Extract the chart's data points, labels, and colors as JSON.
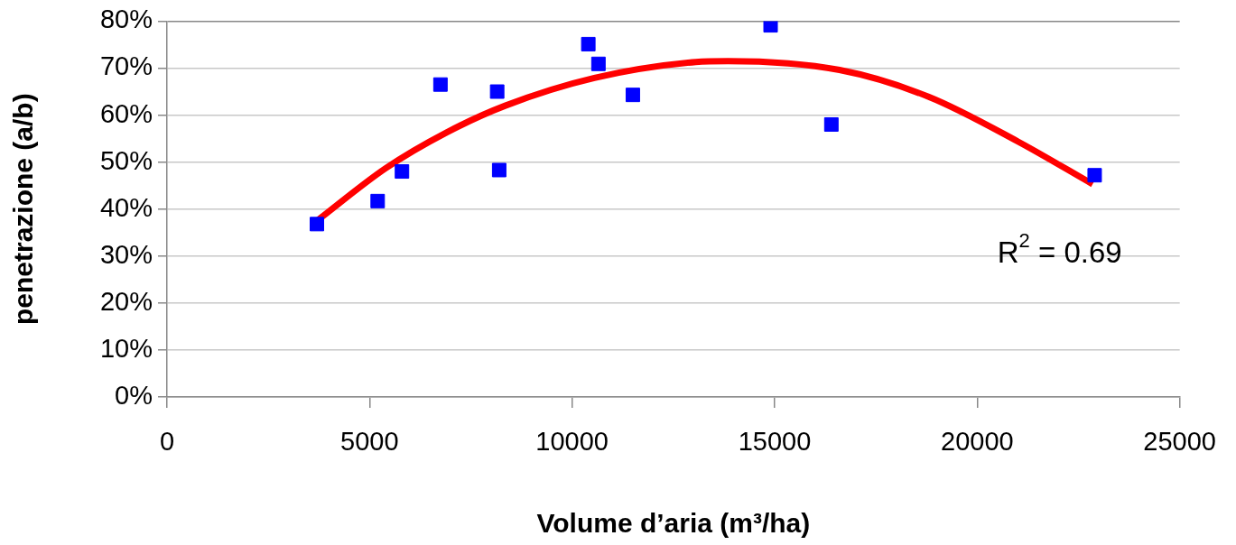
{
  "chart_data": {
    "type": "scatter",
    "xlabel": "Volume d’aria (m³/ha)",
    "ylabel": "penetrazione (a/b)",
    "xlim": [
      0,
      25000
    ],
    "xticks": [
      0,
      5000,
      10000,
      15000,
      20000,
      25000
    ],
    "ylim": [
      0,
      80
    ],
    "yticks": [
      {
        "value": 0,
        "label": "0%"
      },
      {
        "value": 10,
        "label": "10%"
      },
      {
        "value": 20,
        "label": "20%"
      },
      {
        "value": 30,
        "label": "30%"
      },
      {
        "value": 40,
        "label": "40%"
      },
      {
        "value": 50,
        "label": "50%"
      },
      {
        "value": 60,
        "label": "60%"
      },
      {
        "value": 70,
        "label": "70%"
      },
      {
        "value": 80,
        "label": "80%"
      }
    ],
    "grid": "y",
    "legend": false,
    "marker": "square",
    "series": [
      {
        "color": "#0000ff",
        "x": [
          3700,
          5200,
          5800,
          6750,
          8150,
          8200,
          10400,
          10650,
          11500,
          14900,
          16400,
          22900
        ],
        "values": [
          36.8,
          41.7,
          48,
          66.5,
          65,
          48.3,
          75.1,
          70.9,
          64.3,
          79.1,
          58,
          47.2
        ]
      },
      {
        "type": "line",
        "color": "#ff0000",
        "marker": "none",
        "line_style": "solid",
        "x": [
          3700,
          5400,
          6900,
          8350,
          10550,
          13050,
          13850,
          16600,
          18800,
          21000,
          22850
        ],
        "values": [
          37.5,
          48.7,
          56.3,
          62,
          67.9,
          71.3,
          71.5,
          69.6,
          63.9,
          54.4,
          45.3
        ]
      }
    ],
    "annotations": [
      "R$^{2}$ = 0.69"
    ]
  }
}
